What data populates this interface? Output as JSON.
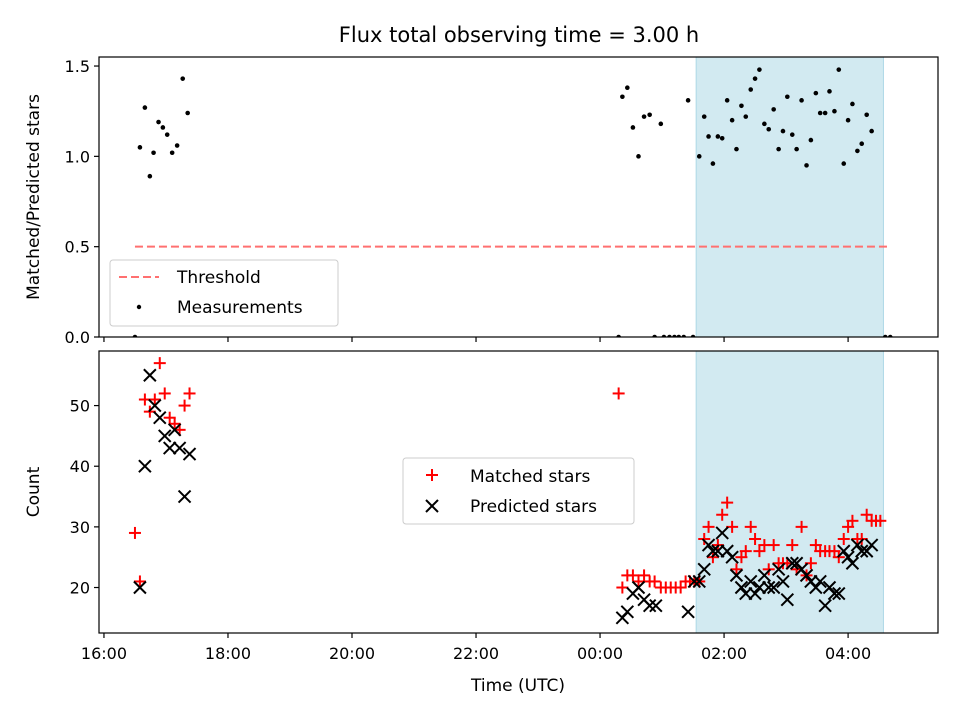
{
  "chart_data": [
    {
      "type": "scatter",
      "title": "Flux total observing time = 3.00 h",
      "xlabel": "",
      "ylabel": "Matched/Predicted stars",
      "ylim": [
        0,
        1.55
      ],
      "yticks": [
        0.0,
        0.5,
        1.0,
        1.5
      ],
      "ytick_labels": [
        "0.0",
        "0.5",
        "1.0",
        "1.5"
      ],
      "x_unit": "hours since 16:00 UTC",
      "xlim": [
        -0.08,
        13.45
      ],
      "shaded_band_x": [
        9.55,
        12.57
      ],
      "shaded_color": "#add8e6",
      "legend_position": "lower-left",
      "series": [
        {
          "name": "Threshold",
          "kind": "dashed-line",
          "color": "#ff7070",
          "x": [
            0.5,
            12.65
          ],
          "y": [
            0.5,
            0.5
          ]
        },
        {
          "name": "Measurements",
          "kind": "dot",
          "color": "#000000",
          "points": [
            [
              0.5,
              0.0
            ],
            [
              0.58,
              1.05
            ],
            [
              0.66,
              1.27
            ],
            [
              0.74,
              0.89
            ],
            [
              0.8,
              1.02
            ],
            [
              0.88,
              1.19
            ],
            [
              0.95,
              1.16
            ],
            [
              1.02,
              1.12
            ],
            [
              1.1,
              1.02
            ],
            [
              1.18,
              1.06
            ],
            [
              1.27,
              1.43
            ],
            [
              1.35,
              1.24
            ],
            [
              8.3,
              0.0
            ],
            [
              8.36,
              1.33
            ],
            [
              8.44,
              1.38
            ],
            [
              8.53,
              1.16
            ],
            [
              8.62,
              1.0
            ],
            [
              8.71,
              1.22
            ],
            [
              8.8,
              1.23
            ],
            [
              8.88,
              0.0
            ],
            [
              8.98,
              1.18
            ],
            [
              9.03,
              0.0
            ],
            [
              9.12,
              0.0
            ],
            [
              9.2,
              0.0
            ],
            [
              9.27,
              0.0
            ],
            [
              9.35,
              0.0
            ],
            [
              9.42,
              1.31
            ],
            [
              9.5,
              0.0
            ],
            [
              9.6,
              1.0
            ],
            [
              9.68,
              1.22
            ],
            [
              9.75,
              1.11
            ],
            [
              9.82,
              0.96
            ],
            [
              9.9,
              1.11
            ],
            [
              9.97,
              1.1
            ],
            [
              10.05,
              1.31
            ],
            [
              10.13,
              1.2
            ],
            [
              10.2,
              1.04
            ],
            [
              10.28,
              1.28
            ],
            [
              10.35,
              1.22
            ],
            [
              10.43,
              1.37
            ],
            [
              10.5,
              1.43
            ],
            [
              10.57,
              1.48
            ],
            [
              10.65,
              1.18
            ],
            [
              10.72,
              1.15
            ],
            [
              10.8,
              1.26
            ],
            [
              10.88,
              1.04
            ],
            [
              10.95,
              1.14
            ],
            [
              11.02,
              1.33
            ],
            [
              11.1,
              1.12
            ],
            [
              11.17,
              1.04
            ],
            [
              11.25,
              1.31
            ],
            [
              11.33,
              0.95
            ],
            [
              11.4,
              1.09
            ],
            [
              11.48,
              1.35
            ],
            [
              11.55,
              1.24
            ],
            [
              11.63,
              1.24
            ],
            [
              11.7,
              1.36
            ],
            [
              11.78,
              1.25
            ],
            [
              11.85,
              1.48
            ],
            [
              11.93,
              0.96
            ],
            [
              12.0,
              1.2
            ],
            [
              12.07,
              1.29
            ],
            [
              12.15,
              1.03
            ],
            [
              12.22,
              1.07
            ],
            [
              12.3,
              1.23
            ],
            [
              12.38,
              1.14
            ],
            [
              12.6,
              0.0
            ],
            [
              12.68,
              0.0
            ]
          ]
        }
      ]
    },
    {
      "type": "scatter",
      "title": "",
      "xlabel": "Time (UTC)",
      "ylabel": "Count",
      "ylim": [
        12.5,
        59
      ],
      "yticks": [
        20,
        30,
        40,
        50
      ],
      "ytick_labels": [
        "20",
        "30",
        "40",
        "50"
      ],
      "x_unit": "hours since 16:00 UTC",
      "xlim": [
        -0.08,
        13.45
      ],
      "xticks": [
        0,
        2,
        4,
        6,
        8,
        10,
        12
      ],
      "xtick_labels": [
        "16:00",
        "18:00",
        "20:00",
        "22:00",
        "00:00",
        "02:00",
        "04:00"
      ],
      "shaded_band_x": [
        9.55,
        12.57
      ],
      "shaded_color": "#add8e6",
      "legend_position": "center",
      "series": [
        {
          "name": "Matched stars",
          "kind": "plus",
          "color": "#ff0000",
          "points": [
            [
              0.5,
              29
            ],
            [
              0.58,
              21
            ],
            [
              0.66,
              51
            ],
            [
              0.74,
              49
            ],
            [
              0.82,
              51
            ],
            [
              0.9,
              57
            ],
            [
              0.98,
              52
            ],
            [
              1.06,
              48
            ],
            [
              1.14,
              47
            ],
            [
              1.22,
              46
            ],
            [
              1.3,
              50
            ],
            [
              1.38,
              52
            ],
            [
              8.3,
              52
            ],
            [
              8.36,
              20
            ],
            [
              8.44,
              22
            ],
            [
              8.53,
              22
            ],
            [
              8.62,
              21
            ],
            [
              8.71,
              22
            ],
            [
              8.8,
              21
            ],
            [
              8.88,
              21
            ],
            [
              8.98,
              20
            ],
            [
              9.06,
              20
            ],
            [
              9.14,
              20
            ],
            [
              9.22,
              20
            ],
            [
              9.3,
              20
            ],
            [
              9.38,
              21
            ],
            [
              9.45,
              21
            ],
            [
              9.52,
              21
            ],
            [
              9.6,
              21
            ],
            [
              9.68,
              28
            ],
            [
              9.75,
              30
            ],
            [
              9.82,
              25
            ],
            [
              9.9,
              27
            ],
            [
              9.97,
              32
            ],
            [
              10.05,
              34
            ],
            [
              10.13,
              30
            ],
            [
              10.2,
              23
            ],
            [
              10.28,
              25
            ],
            [
              10.35,
              26
            ],
            [
              10.43,
              30
            ],
            [
              10.5,
              28
            ],
            [
              10.57,
              26
            ],
            [
              10.65,
              27
            ],
            [
              10.72,
              23
            ],
            [
              10.8,
              27
            ],
            [
              10.88,
              24
            ],
            [
              10.95,
              24
            ],
            [
              11.02,
              24
            ],
            [
              11.1,
              27
            ],
            [
              11.17,
              23
            ],
            [
              11.25,
              30
            ],
            [
              11.33,
              22
            ],
            [
              11.4,
              24
            ],
            [
              11.48,
              27
            ],
            [
              11.55,
              26
            ],
            [
              11.63,
              26
            ],
            [
              11.7,
              26
            ],
            [
              11.78,
              26
            ],
            [
              11.85,
              25
            ],
            [
              11.93,
              28
            ],
            [
              12.0,
              30
            ],
            [
              12.07,
              31
            ],
            [
              12.15,
              28
            ],
            [
              12.22,
              28
            ],
            [
              12.3,
              32
            ],
            [
              12.38,
              31
            ],
            [
              12.45,
              31
            ],
            [
              12.52,
              31
            ]
          ]
        },
        {
          "name": "Predicted stars",
          "kind": "x",
          "color": "#000000",
          "points": [
            [
              0.58,
              20
            ],
            [
              0.66,
              40
            ],
            [
              0.74,
              55
            ],
            [
              0.82,
              50
            ],
            [
              0.9,
              48
            ],
            [
              0.98,
              45
            ],
            [
              1.06,
              43
            ],
            [
              1.14,
              46
            ],
            [
              1.22,
              43
            ],
            [
              1.3,
              35
            ],
            [
              1.38,
              42
            ],
            [
              8.36,
              15
            ],
            [
              8.44,
              16
            ],
            [
              8.53,
              19
            ],
            [
              8.62,
              20
            ],
            [
              8.71,
              18
            ],
            [
              8.8,
              17
            ],
            [
              8.9,
              17
            ],
            [
              9.42,
              16
            ],
            [
              9.52,
              21
            ],
            [
              9.6,
              21
            ],
            [
              9.68,
              23
            ],
            [
              9.75,
              27
            ],
            [
              9.82,
              26
            ],
            [
              9.9,
              26
            ],
            [
              9.97,
              29
            ],
            [
              10.05,
              26
            ],
            [
              10.13,
              25
            ],
            [
              10.2,
              22
            ],
            [
              10.28,
              20
            ],
            [
              10.35,
              19
            ],
            [
              10.43,
              21
            ],
            [
              10.5,
              19
            ],
            [
              10.57,
              20
            ],
            [
              10.65,
              22
            ],
            [
              10.72,
              20
            ],
            [
              10.8,
              20
            ],
            [
              10.88,
              23
            ],
            [
              10.95,
              21
            ],
            [
              11.02,
              18
            ],
            [
              11.1,
              24
            ],
            [
              11.17,
              24
            ],
            [
              11.25,
              23
            ],
            [
              11.33,
              22
            ],
            [
              11.4,
              21
            ],
            [
              11.48,
              20
            ],
            [
              11.55,
              21
            ],
            [
              11.63,
              17
            ],
            [
              11.7,
              20
            ],
            [
              11.78,
              19
            ],
            [
              11.85,
              19
            ],
            [
              11.93,
              26
            ],
            [
              12.0,
              25
            ],
            [
              12.07,
              24
            ],
            [
              12.15,
              27
            ],
            [
              12.22,
              26
            ],
            [
              12.3,
              26
            ],
            [
              12.38,
              27
            ]
          ]
        }
      ]
    }
  ],
  "colors": {
    "threshold": "#ff7070",
    "matched": "#ff0000",
    "predicted": "#000000",
    "band": "#add8e6"
  }
}
